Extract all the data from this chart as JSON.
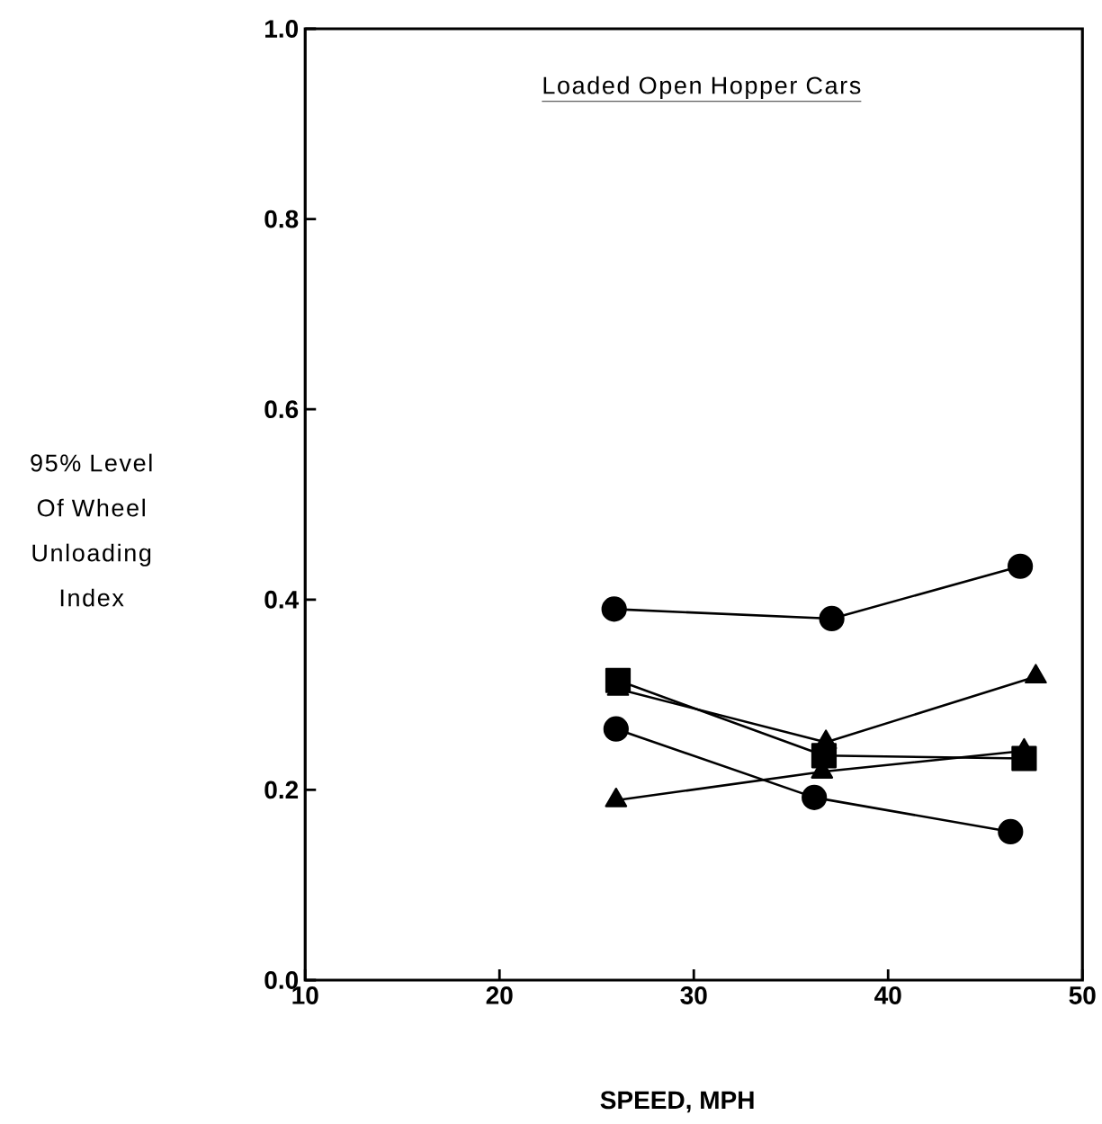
{
  "chart_data": {
    "type": "line",
    "title": "Loaded Open Hopper Cars",
    "xlabel": "SPEED, MPH",
    "ylabel": "95% Level Of Wheel Unloading Index",
    "xlim": [
      10,
      50
    ],
    "xticks": [
      10,
      20,
      30,
      40,
      50
    ],
    "ylim": [
      0,
      1
    ],
    "yticks": [
      {
        "value": 0,
        "label": "0.0"
      },
      0.2,
      0.4,
      0.6,
      0.8,
      {
        "value": 1,
        "label": "1.0"
      }
    ],
    "grid": false,
    "line_style": "solid",
    "series": [
      {
        "color": "#000000",
        "marker": "circle",
        "x": [
          25.9,
          37.1,
          46.8
        ],
        "values": [
          0.39,
          0.38,
          0.435
        ]
      },
      {
        "color": "#000000",
        "marker": "square",
        "x": [
          26.1,
          36.7,
          47.0
        ],
        "values": [
          0.315,
          0.236,
          0.233
        ]
      },
      {
        "color": "#000000",
        "marker": "triangle",
        "x": [
          26.1,
          36.8,
          47.6
        ],
        "values": [
          0.306,
          0.25,
          0.319
        ]
      },
      {
        "color": "#000000",
        "marker": "circle",
        "x": [
          26.0,
          36.2,
          46.3
        ],
        "values": [
          0.264,
          0.192,
          0.156
        ]
      },
      {
        "color": "#000000",
        "marker": "triangle",
        "x": [
          26.0,
          36.6,
          47.0
        ],
        "values": [
          0.189,
          0.219,
          0.241
        ]
      }
    ]
  }
}
